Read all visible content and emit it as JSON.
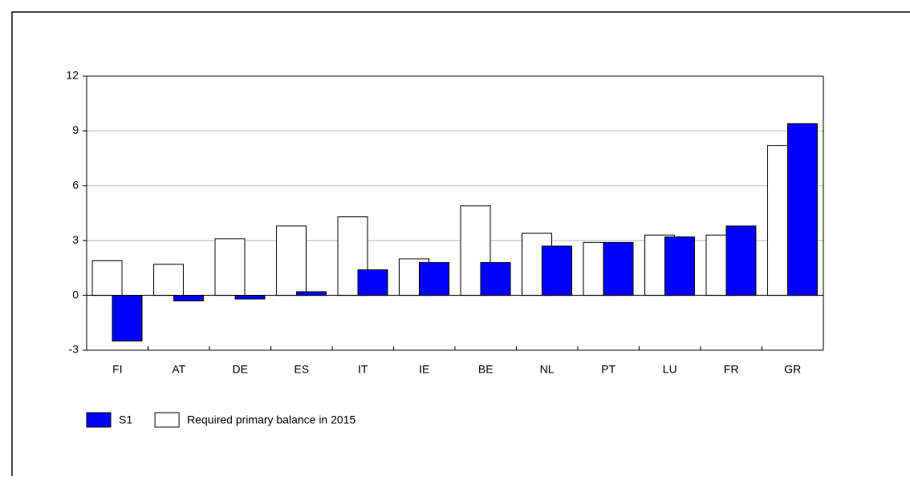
{
  "chart_data": {
    "type": "bar",
    "categories": [
      "FI",
      "AT",
      "DE",
      "ES",
      "IT",
      "IE",
      "BE",
      "NL",
      "PT",
      "LU",
      "FR",
      "GR"
    ],
    "series": [
      {
        "name": "Required primary balance in 2015",
        "color": "#ffffff",
        "values": [
          1.9,
          1.7,
          3.1,
          3.8,
          4.3,
          2.0,
          4.9,
          3.4,
          2.9,
          3.3,
          3.3,
          8.2
        ]
      },
      {
        "name": "S1",
        "color": "#0000ff",
        "values": [
          -2.5,
          -0.3,
          -0.2,
          0.2,
          1.4,
          1.8,
          1.8,
          2.7,
          2.9,
          3.2,
          3.8,
          9.4
        ]
      }
    ],
    "ylim": [
      -3,
      12
    ],
    "yticks": [
      -3,
      0,
      3,
      6,
      9,
      12
    ],
    "grid": true
  }
}
